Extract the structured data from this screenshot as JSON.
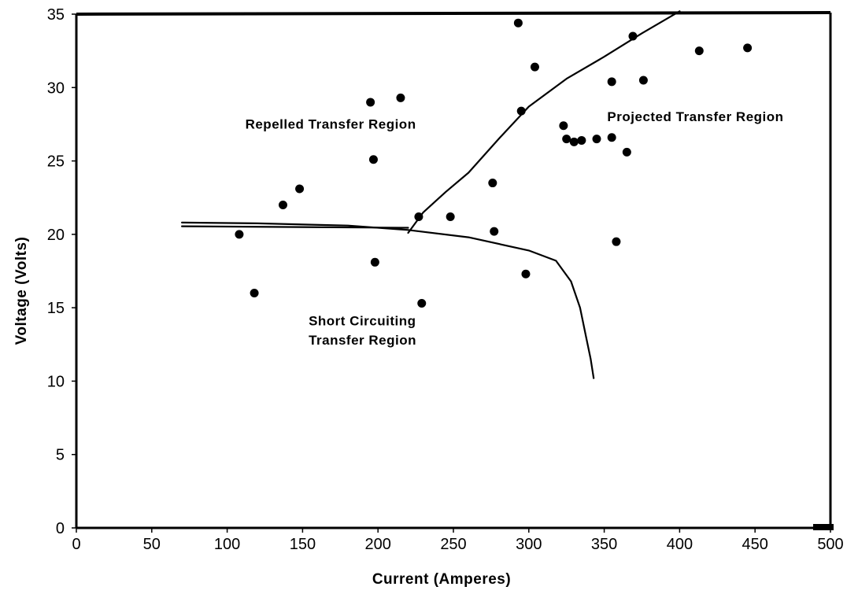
{
  "chart_data": {
    "type": "scatter",
    "xlabel": "Current (Amperes)",
    "ylabel": "Voltage (Volts)",
    "xlim": [
      0,
      500
    ],
    "ylim": [
      0,
      35
    ],
    "x_ticks": [
      0,
      50,
      100,
      150,
      200,
      250,
      300,
      350,
      400,
      450,
      500
    ],
    "y_ticks": [
      0,
      5,
      10,
      15,
      20,
      25,
      30,
      35
    ],
    "grid": false,
    "legend": "none",
    "points": [
      {
        "x": 108,
        "y": 20.0
      },
      {
        "x": 118,
        "y": 16.0
      },
      {
        "x": 137,
        "y": 22.0
      },
      {
        "x": 148,
        "y": 23.1
      },
      {
        "x": 195,
        "y": 29.0
      },
      {
        "x": 197,
        "y": 25.1
      },
      {
        "x": 198,
        "y": 18.1
      },
      {
        "x": 215,
        "y": 29.3
      },
      {
        "x": 227,
        "y": 21.2
      },
      {
        "x": 229,
        "y": 15.3
      },
      {
        "x": 248,
        "y": 21.2
      },
      {
        "x": 276,
        "y": 23.5
      },
      {
        "x": 277,
        "y": 20.2
      },
      {
        "x": 293,
        "y": 34.4
      },
      {
        "x": 295,
        "y": 28.4
      },
      {
        "x": 298,
        "y": 17.3
      },
      {
        "x": 304,
        "y": 31.4
      },
      {
        "x": 323,
        "y": 27.4
      },
      {
        "x": 325,
        "y": 26.5
      },
      {
        "x": 330,
        "y": 26.3
      },
      {
        "x": 335,
        "y": 26.4
      },
      {
        "x": 345,
        "y": 26.5
      },
      {
        "x": 355,
        "y": 26.6
      },
      {
        "x": 355,
        "y": 30.4
      },
      {
        "x": 358,
        "y": 19.5
      },
      {
        "x": 365,
        "y": 25.6
      },
      {
        "x": 369,
        "y": 33.5
      },
      {
        "x": 376,
        "y": 30.5
      },
      {
        "x": 413,
        "y": 32.5
      },
      {
        "x": 445,
        "y": 32.7
      }
    ],
    "curves": [
      {
        "points": [
          [
            70,
            20.8
          ],
          [
            120,
            20.75
          ],
          [
            180,
            20.6
          ],
          [
            220,
            20.3
          ],
          [
            260,
            19.8
          ],
          [
            300,
            18.9
          ],
          [
            318,
            18.2
          ],
          [
            328,
            16.8
          ],
          [
            334,
            15.0
          ],
          [
            338,
            13.0
          ],
          [
            341,
            11.5
          ],
          [
            343,
            10.2
          ]
        ]
      },
      {
        "points": [
          [
            70,
            20.55
          ],
          [
            220,
            20.45
          ]
        ]
      },
      {
        "points": [
          [
            220,
            20.1
          ],
          [
            230,
            21.5
          ],
          [
            245,
            22.9
          ],
          [
            260,
            24.2
          ],
          [
            280,
            26.5
          ],
          [
            300,
            28.7
          ],
          [
            325,
            30.6
          ],
          [
            350,
            32.1
          ],
          [
            375,
            33.7
          ],
          [
            400,
            35.2
          ]
        ]
      }
    ],
    "annotations": [
      {
        "lines": [
          "Repelled Transfer Region"
        ],
        "x": 112,
        "y": 27.2
      },
      {
        "lines": [
          "Projected Transfer Region"
        ],
        "x": 352,
        "y": 27.7
      },
      {
        "lines": [
          "Short Circuiting",
          "Transfer Region"
        ],
        "x": 154,
        "y": 13.8,
        "line_step": 1.3,
        "align": "middle"
      }
    ]
  }
}
